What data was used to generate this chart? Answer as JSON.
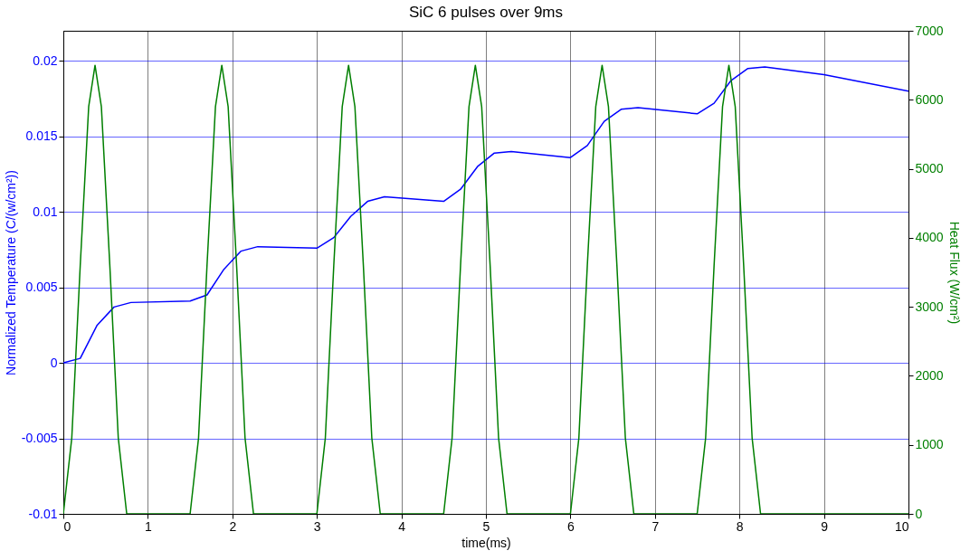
{
  "chart_data": {
    "type": "line",
    "title": "SiC 6 pulses over 9ms",
    "xlabel": "time(ms)",
    "ylabel": "Normalized Temperature (C/(w/cm²))",
    "y2label": "Heat Flux (W/cm²)",
    "xlim": [
      0,
      10
    ],
    "xticks": [
      0,
      1,
      2,
      3,
      4,
      5,
      6,
      7,
      8,
      9,
      10
    ],
    "ylim": [
      -0.01,
      0.022
    ],
    "yticks": [
      -0.01,
      -0.005,
      0,
      0.005,
      0.01,
      0.015,
      0.02
    ],
    "y2lim": [
      0,
      7000
    ],
    "y2ticks": [
      0,
      1000,
      2000,
      3000,
      4000,
      5000,
      6000,
      7000
    ],
    "grid": true,
    "marker": "none",
    "line_style": "solid",
    "series": [
      {
        "color": "#0000ff",
        "x": [
          0,
          0.2,
          0.4,
          0.6,
          0.8,
          1.5,
          1.7,
          1.9,
          2.1,
          2.3,
          3.0,
          3.2,
          3.4,
          3.6,
          3.8,
          4.5,
          4.7,
          4.9,
          5.1,
          5.3,
          6.0,
          6.2,
          6.4,
          6.6,
          6.8,
          7.5,
          7.7,
          7.9,
          8.1,
          8.3,
          9,
          10
        ],
        "values": [
          0,
          0.0003,
          0.0025,
          0.0037,
          0.004,
          0.0041,
          0.0045,
          0.0062,
          0.0074,
          0.0077,
          0.0076,
          0.0083,
          0.0097,
          0.0107,
          0.011,
          0.0107,
          0.0115,
          0.013,
          0.0139,
          0.014,
          0.0136,
          0.0144,
          0.016,
          0.0168,
          0.0169,
          0.0165,
          0.0172,
          0.0187,
          0.0195,
          0.0196,
          0.0191,
          0.018
        ]
      },
      {
        "color": "#007f00",
        "axis": "y2",
        "x": [
          0,
          0.1,
          0.2,
          0.3,
          0.375,
          0.45,
          0.55,
          0.65,
          0.75,
          1.5,
          1.6,
          1.7,
          1.8,
          1.875,
          1.95,
          2.05,
          2.15,
          2.25,
          3.0,
          3.1,
          3.2,
          3.3,
          3.375,
          3.45,
          3.55,
          3.65,
          3.75,
          4.5,
          4.6,
          4.7,
          4.8,
          4.875,
          4.95,
          5.05,
          5.15,
          5.25,
          6.0,
          6.1,
          6.2,
          6.3,
          6.375,
          6.45,
          6.55,
          6.65,
          6.75,
          7.5,
          7.6,
          7.7,
          7.8,
          7.875,
          7.95,
          8.05,
          8.15,
          8.25,
          10
        ],
        "values": [
          0,
          1100,
          3600,
          5900,
          6500,
          5900,
          3600,
          1100,
          0,
          0,
          1100,
          3600,
          5900,
          6500,
          5900,
          3600,
          1100,
          0,
          0,
          1100,
          3600,
          5900,
          6500,
          5900,
          3600,
          1100,
          0,
          0,
          1100,
          3600,
          5900,
          6500,
          5900,
          3600,
          1100,
          0,
          0,
          1100,
          3600,
          5900,
          6500,
          5900,
          3600,
          1100,
          0,
          0,
          1100,
          3600,
          5900,
          6500,
          5900,
          3600,
          1100,
          0,
          0
        ]
      }
    ]
  }
}
